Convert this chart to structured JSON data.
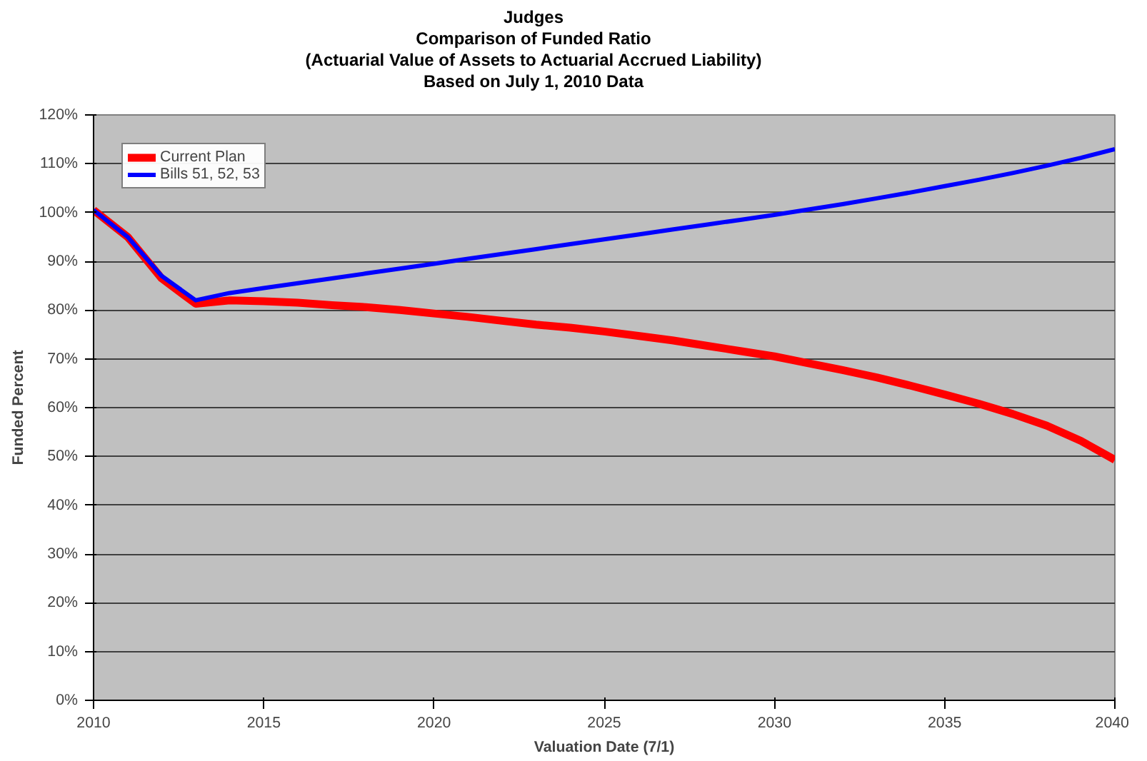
{
  "chart_data": {
    "type": "line",
    "title": "Judges\nComparison of Funded Ratio\n(Actuarial Value of Assets to Actuarial Accrued Liability)\nBased on July 1, 2010 Data",
    "xlabel": "Valuation Date (7/1)",
    "ylabel": "Funded Percent",
    "x": [
      2010,
      2011,
      2012,
      2013,
      2014,
      2015,
      2016,
      2017,
      2018,
      2019,
      2020,
      2021,
      2022,
      2023,
      2024,
      2025,
      2026,
      2027,
      2028,
      2029,
      2030,
      2031,
      2032,
      2033,
      2034,
      2035,
      2036,
      2037,
      2038,
      2039,
      2040
    ],
    "series": [
      {
        "name": "Current Plan",
        "color": "#ff0000",
        "values": [
          100.5,
          95,
          86.5,
          81.3,
          82,
          81.8,
          81.5,
          81,
          80.6,
          80,
          79.3,
          78.6,
          77.8,
          77,
          76.4,
          75.6,
          74.7,
          73.8,
          72.7,
          71.6,
          70.5,
          69.1,
          67.7,
          66.2,
          64.5,
          62.7,
          60.8,
          58.7,
          56.3,
          53.2,
          49.3
        ]
      },
      {
        "name": "Bills 51, 52, 53",
        "color": "#0000ff",
        "values": [
          100.5,
          95,
          87,
          82,
          83.5,
          84.5,
          85.5,
          86.5,
          87.5,
          88.5,
          89.5,
          90.5,
          91.5,
          92.5,
          93.5,
          94.5,
          95.5,
          96.5,
          97.5,
          98.5,
          99.5,
          100.6,
          101.7,
          102.9,
          104.1,
          105.4,
          106.7,
          108.1,
          109.6,
          111.2,
          113
        ]
      }
    ],
    "xlim": [
      2010,
      2040
    ],
    "xticks": [
      2010,
      2015,
      2020,
      2025,
      2030,
      2035,
      2040
    ],
    "ylim": [
      0,
      120
    ],
    "yticks": [
      {
        "value": 0,
        "label": "0%"
      },
      {
        "value": 10,
        "label": "10%"
      },
      {
        "value": 20,
        "label": "20%"
      },
      {
        "value": 30,
        "label": "30%"
      },
      {
        "value": 40,
        "label": "40%"
      },
      {
        "value": 50,
        "label": "50%"
      },
      {
        "value": 60,
        "label": "60%"
      },
      {
        "value": 70,
        "label": "70%"
      },
      {
        "value": 80,
        "label": "80%"
      },
      {
        "value": 90,
        "label": "90%"
      },
      {
        "value": 100,
        "label": "100%"
      },
      {
        "value": 110,
        "label": "110%"
      },
      {
        "value": 120,
        "label": "120%"
      }
    ],
    "grid": "y",
    "legend": "top left",
    "marker": "none",
    "line_style": "solid"
  }
}
